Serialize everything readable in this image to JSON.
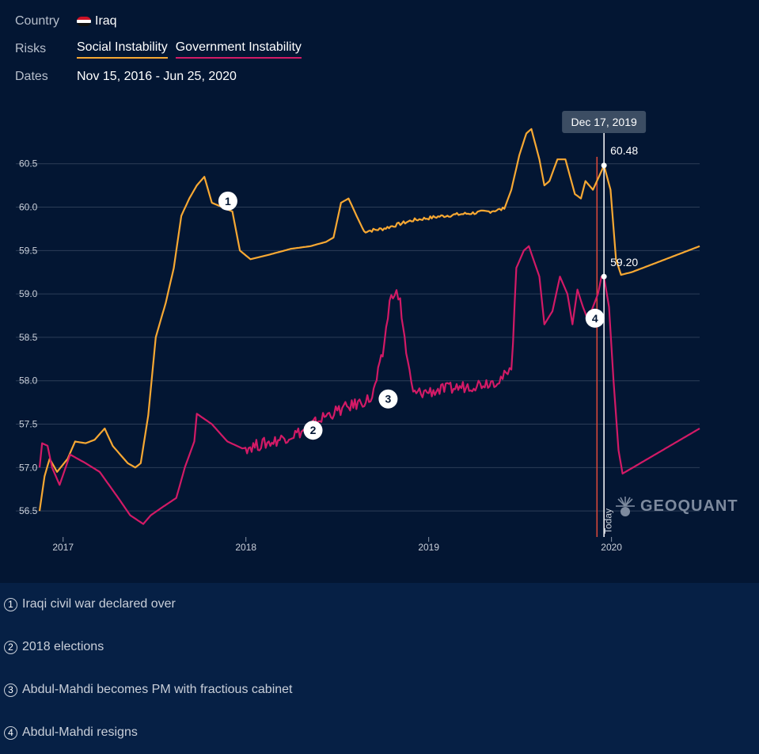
{
  "controls": {
    "country_label": "Country",
    "country_value": "Iraq",
    "risks_label": "Risks",
    "risks": [
      "Social Instability",
      "Government Instability"
    ],
    "dates_label": "Dates",
    "dates_value": "Nov 15, 2016 - Jun 25, 2020"
  },
  "colors": {
    "background": "#031633",
    "social": "#f7a833",
    "government": "#d21a66",
    "today_line": "#e0493a",
    "hover_line": "#ffffff",
    "tooltip_bg": "#3c4d63"
  },
  "chart_data": {
    "type": "line",
    "x_ticks": [
      "2017",
      "2018",
      "2019",
      "2020"
    ],
    "y_ticks": [
      "56.5",
      "57.0",
      "57.5",
      "58.0",
      "58.5",
      "59.0",
      "59.5",
      "60.0",
      "60.5"
    ],
    "ylim": [
      56.2,
      61.2
    ],
    "xlim": [
      "2016-11-15",
      "2020-06-25"
    ],
    "grid": true,
    "today_label": "Today",
    "today_date": "2019-12-03",
    "hover": {
      "date_label": "Dec 17, 2019",
      "date": "2019-12-17",
      "social_value": "60.48",
      "government_value": "59.20"
    },
    "series": [
      {
        "name": "Social Instability",
        "color": "#f7a833",
        "points": [
          [
            "2016-11-15",
            56.5
          ],
          [
            "2016-11-25",
            56.9
          ],
          [
            "2016-12-05",
            57.1
          ],
          [
            "2016-12-20",
            56.95
          ],
          [
            "2017-01-10",
            57.1
          ],
          [
            "2017-01-25",
            57.3
          ],
          [
            "2017-02-15",
            57.28
          ],
          [
            "2017-03-05",
            57.32
          ],
          [
            "2017-03-25",
            57.45
          ],
          [
            "2017-04-10",
            57.25
          ],
          [
            "2017-05-10",
            57.05
          ],
          [
            "2017-05-25",
            57.0
          ],
          [
            "2017-06-05",
            57.05
          ],
          [
            "2017-06-20",
            57.6
          ],
          [
            "2017-07-05",
            58.5
          ],
          [
            "2017-07-25",
            58.9
          ],
          [
            "2017-08-10",
            59.3
          ],
          [
            "2017-08-25",
            59.9
          ],
          [
            "2017-09-10",
            60.1
          ],
          [
            "2017-09-25",
            60.25
          ],
          [
            "2017-10-10",
            60.35
          ],
          [
            "2017-10-25",
            60.05
          ],
          [
            "2017-11-15",
            60.0
          ],
          [
            "2017-12-05",
            59.95
          ],
          [
            "2017-12-20",
            59.5
          ],
          [
            "2018-01-10",
            59.4
          ],
          [
            "2018-02-15",
            59.45
          ],
          [
            "2018-04-01",
            59.52
          ],
          [
            "2018-05-10",
            59.55
          ],
          [
            "2018-06-10",
            59.6
          ],
          [
            "2018-06-25",
            59.65
          ],
          [
            "2018-07-10",
            60.05
          ],
          [
            "2018-07-25",
            60.1
          ],
          [
            "2018-08-10",
            59.9
          ],
          [
            "2018-08-25",
            59.72
          ],
          [
            "2018-10-01",
            59.75
          ],
          [
            "2018-12-01",
            59.85
          ],
          [
            "2019-02-01",
            59.9
          ],
          [
            "2019-05-01",
            59.95
          ],
          [
            "2019-06-01",
            59.98
          ],
          [
            "2019-06-15",
            60.2
          ],
          [
            "2019-07-01",
            60.6
          ],
          [
            "2019-07-15",
            60.85
          ],
          [
            "2019-07-25",
            60.9
          ],
          [
            "2019-08-10",
            60.55
          ],
          [
            "2019-08-20",
            60.25
          ],
          [
            "2019-08-30",
            60.3
          ],
          [
            "2019-09-15",
            60.55
          ],
          [
            "2019-10-01",
            60.55
          ],
          [
            "2019-10-20",
            60.15
          ],
          [
            "2019-11-01",
            60.1
          ],
          [
            "2019-11-10",
            60.3
          ],
          [
            "2019-11-25",
            60.2
          ],
          [
            "2019-12-17",
            60.48
          ],
          [
            "2019-12-30",
            60.2
          ],
          [
            "2020-01-10",
            59.4
          ],
          [
            "2020-01-20",
            59.22
          ],
          [
            "2020-02-10",
            59.25
          ],
          [
            "2020-06-25",
            59.55
          ]
        ]
      },
      {
        "name": "Government Instability",
        "color": "#d21a66",
        "points": [
          [
            "2016-11-15",
            57.0
          ],
          [
            "2016-11-20",
            57.28
          ],
          [
            "2016-12-01",
            57.25
          ],
          [
            "2016-12-10",
            57.0
          ],
          [
            "2016-12-25",
            56.8
          ],
          [
            "2017-01-15",
            57.15
          ],
          [
            "2017-02-15",
            57.05
          ],
          [
            "2017-03-15",
            56.95
          ],
          [
            "2017-04-15",
            56.7
          ],
          [
            "2017-05-15",
            56.45
          ],
          [
            "2017-06-10",
            56.35
          ],
          [
            "2017-06-25",
            56.45
          ],
          [
            "2017-07-20",
            56.55
          ],
          [
            "2017-08-15",
            56.65
          ],
          [
            "2017-09-01",
            57.0
          ],
          [
            "2017-09-20",
            57.3
          ],
          [
            "2017-09-25",
            57.62
          ],
          [
            "2017-10-25",
            57.5
          ],
          [
            "2017-11-25",
            57.3
          ],
          [
            "2017-12-25",
            57.22
          ],
          [
            "2018-02-25",
            57.3
          ],
          [
            "2018-04-25",
            57.42
          ],
          [
            "2018-06-10",
            57.6
          ],
          [
            "2018-07-25",
            57.7
          ],
          [
            "2018-09-10",
            57.8
          ],
          [
            "2018-10-01",
            58.3
          ],
          [
            "2018-10-15",
            58.9
          ],
          [
            "2018-10-25",
            59.05
          ],
          [
            "2018-11-05",
            58.9
          ],
          [
            "2018-11-20",
            58.2
          ],
          [
            "2018-12-01",
            57.85
          ],
          [
            "2019-02-01",
            57.9
          ],
          [
            "2019-04-01",
            57.95
          ],
          [
            "2019-05-15",
            58.0
          ],
          [
            "2019-06-01",
            58.05
          ],
          [
            "2019-06-15",
            58.1
          ],
          [
            "2019-06-25",
            59.3
          ],
          [
            "2019-07-10",
            59.5
          ],
          [
            "2019-07-20",
            59.55
          ],
          [
            "2019-08-10",
            59.2
          ],
          [
            "2019-08-20",
            58.65
          ],
          [
            "2019-09-05",
            58.8
          ],
          [
            "2019-09-20",
            59.2
          ],
          [
            "2019-10-05",
            59.0
          ],
          [
            "2019-10-15",
            58.65
          ],
          [
            "2019-10-25",
            59.05
          ],
          [
            "2019-11-05",
            58.85
          ],
          [
            "2019-11-15",
            58.7
          ],
          [
            "2019-11-25",
            58.85
          ],
          [
            "2019-12-05",
            59.0
          ],
          [
            "2019-12-12",
            59.2
          ],
          [
            "2019-12-17",
            59.2
          ],
          [
            "2019-12-27",
            58.85
          ],
          [
            "2020-01-05",
            58.0
          ],
          [
            "2020-01-15",
            57.2
          ],
          [
            "2020-01-23",
            56.93
          ],
          [
            "2020-06-25",
            57.45
          ]
        ]
      }
    ],
    "annotations": [
      {
        "num": "1",
        "date": "2017-11-26",
        "value": 60.07
      },
      {
        "num": "2",
        "date": "2018-05-15",
        "value": 57.43
      },
      {
        "num": "3",
        "date": "2018-10-12",
        "value": 57.79
      },
      {
        "num": "4",
        "date": "2019-11-29",
        "value": 58.72
      }
    ],
    "logo_text": "GEOQUANT"
  },
  "annotation_list": [
    {
      "num": "1",
      "text": "Iraqi civil war declared over"
    },
    {
      "num": "2",
      "text": "2018 elections"
    },
    {
      "num": "3",
      "text": "Abdul-Mahdi becomes PM with fractious cabinet"
    },
    {
      "num": "4",
      "text": "Abdul-Mahdi resigns"
    }
  ]
}
